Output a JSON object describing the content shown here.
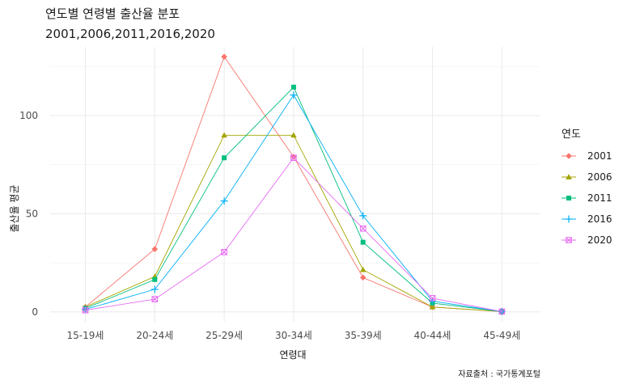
{
  "chart_data": {
    "type": "line",
    "title": "연도별 연령별 출산율 분포",
    "subtitle": "2001,2006,2011,2016,2020",
    "xlabel": "연령대",
    "ylabel": "출산율 평균",
    "caption": "자료출처 : 국가통계포털",
    "categories": [
      "15-19세",
      "20-24세",
      "25-29세",
      "30-34세",
      "35-39세",
      "40-44세",
      "45-49세"
    ],
    "ylim": [
      -5,
      135
    ],
    "yticks": [
      0,
      50,
      100
    ],
    "grid": true,
    "legend": {
      "title": "연도",
      "position": "right"
    },
    "series": [
      {
        "name": "2001",
        "color": "#F8766D",
        "marker": "diamond",
        "values": [
          2.5,
          32,
          130,
          79,
          17.5,
          2.5,
          0.2
        ]
      },
      {
        "name": "2006",
        "color": "#A3A500",
        "marker": "triangle",
        "values": [
          2.5,
          18,
          90,
          90,
          21.5,
          2.5,
          0.2
        ]
      },
      {
        "name": "2011",
        "color": "#00BF7D",
        "marker": "square",
        "values": [
          1.8,
          16.5,
          78.5,
          114.5,
          35.5,
          4.5,
          0.2
        ]
      },
      {
        "name": "2016",
        "color": "#00B0F6",
        "marker": "plus",
        "values": [
          1.3,
          11.5,
          56.5,
          110.5,
          49,
          5.5,
          0.2
        ]
      },
      {
        "name": "2020",
        "color": "#E76BF3",
        "marker": "boxx",
        "values": [
          0.9,
          6.5,
          30.5,
          78.5,
          42.5,
          7,
          0.2
        ]
      }
    ]
  }
}
